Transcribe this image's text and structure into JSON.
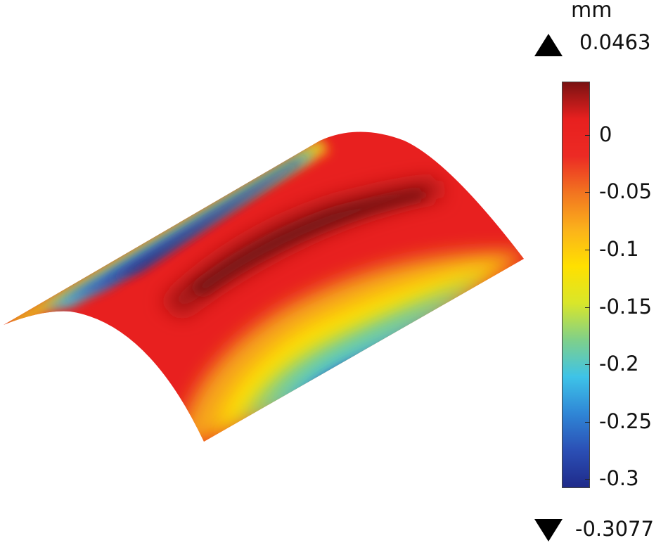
{
  "colorbar": {
    "unit": "mm",
    "max_label": "0.0463",
    "min_label": "-0.3077",
    "max": 0.0463,
    "min": -0.3077,
    "ticks": [
      {
        "value": 0,
        "label": "0"
      },
      {
        "value": -0.05,
        "label": "-0.05"
      },
      {
        "value": -0.1,
        "label": "-0.1"
      },
      {
        "value": -0.15,
        "label": "-0.15"
      },
      {
        "value": -0.2,
        "label": "-0.2"
      },
      {
        "value": -0.25,
        "label": "-0.25"
      },
      {
        "value": -0.3,
        "label": "-0.3"
      }
    ],
    "colormap": [
      "#1f2a8a",
      "#2b4fb5",
      "#2f86d6",
      "#3ec3e8",
      "#7fd08a",
      "#d9e62a",
      "#ffe000",
      "#fbb21b",
      "#f27420",
      "#ec2a24",
      "#e8201f",
      "#7a1212"
    ]
  },
  "colors": {
    "surface_max": "#7a1212",
    "surface_high": "#e8201f",
    "surface_low": "#1f2a8a"
  }
}
